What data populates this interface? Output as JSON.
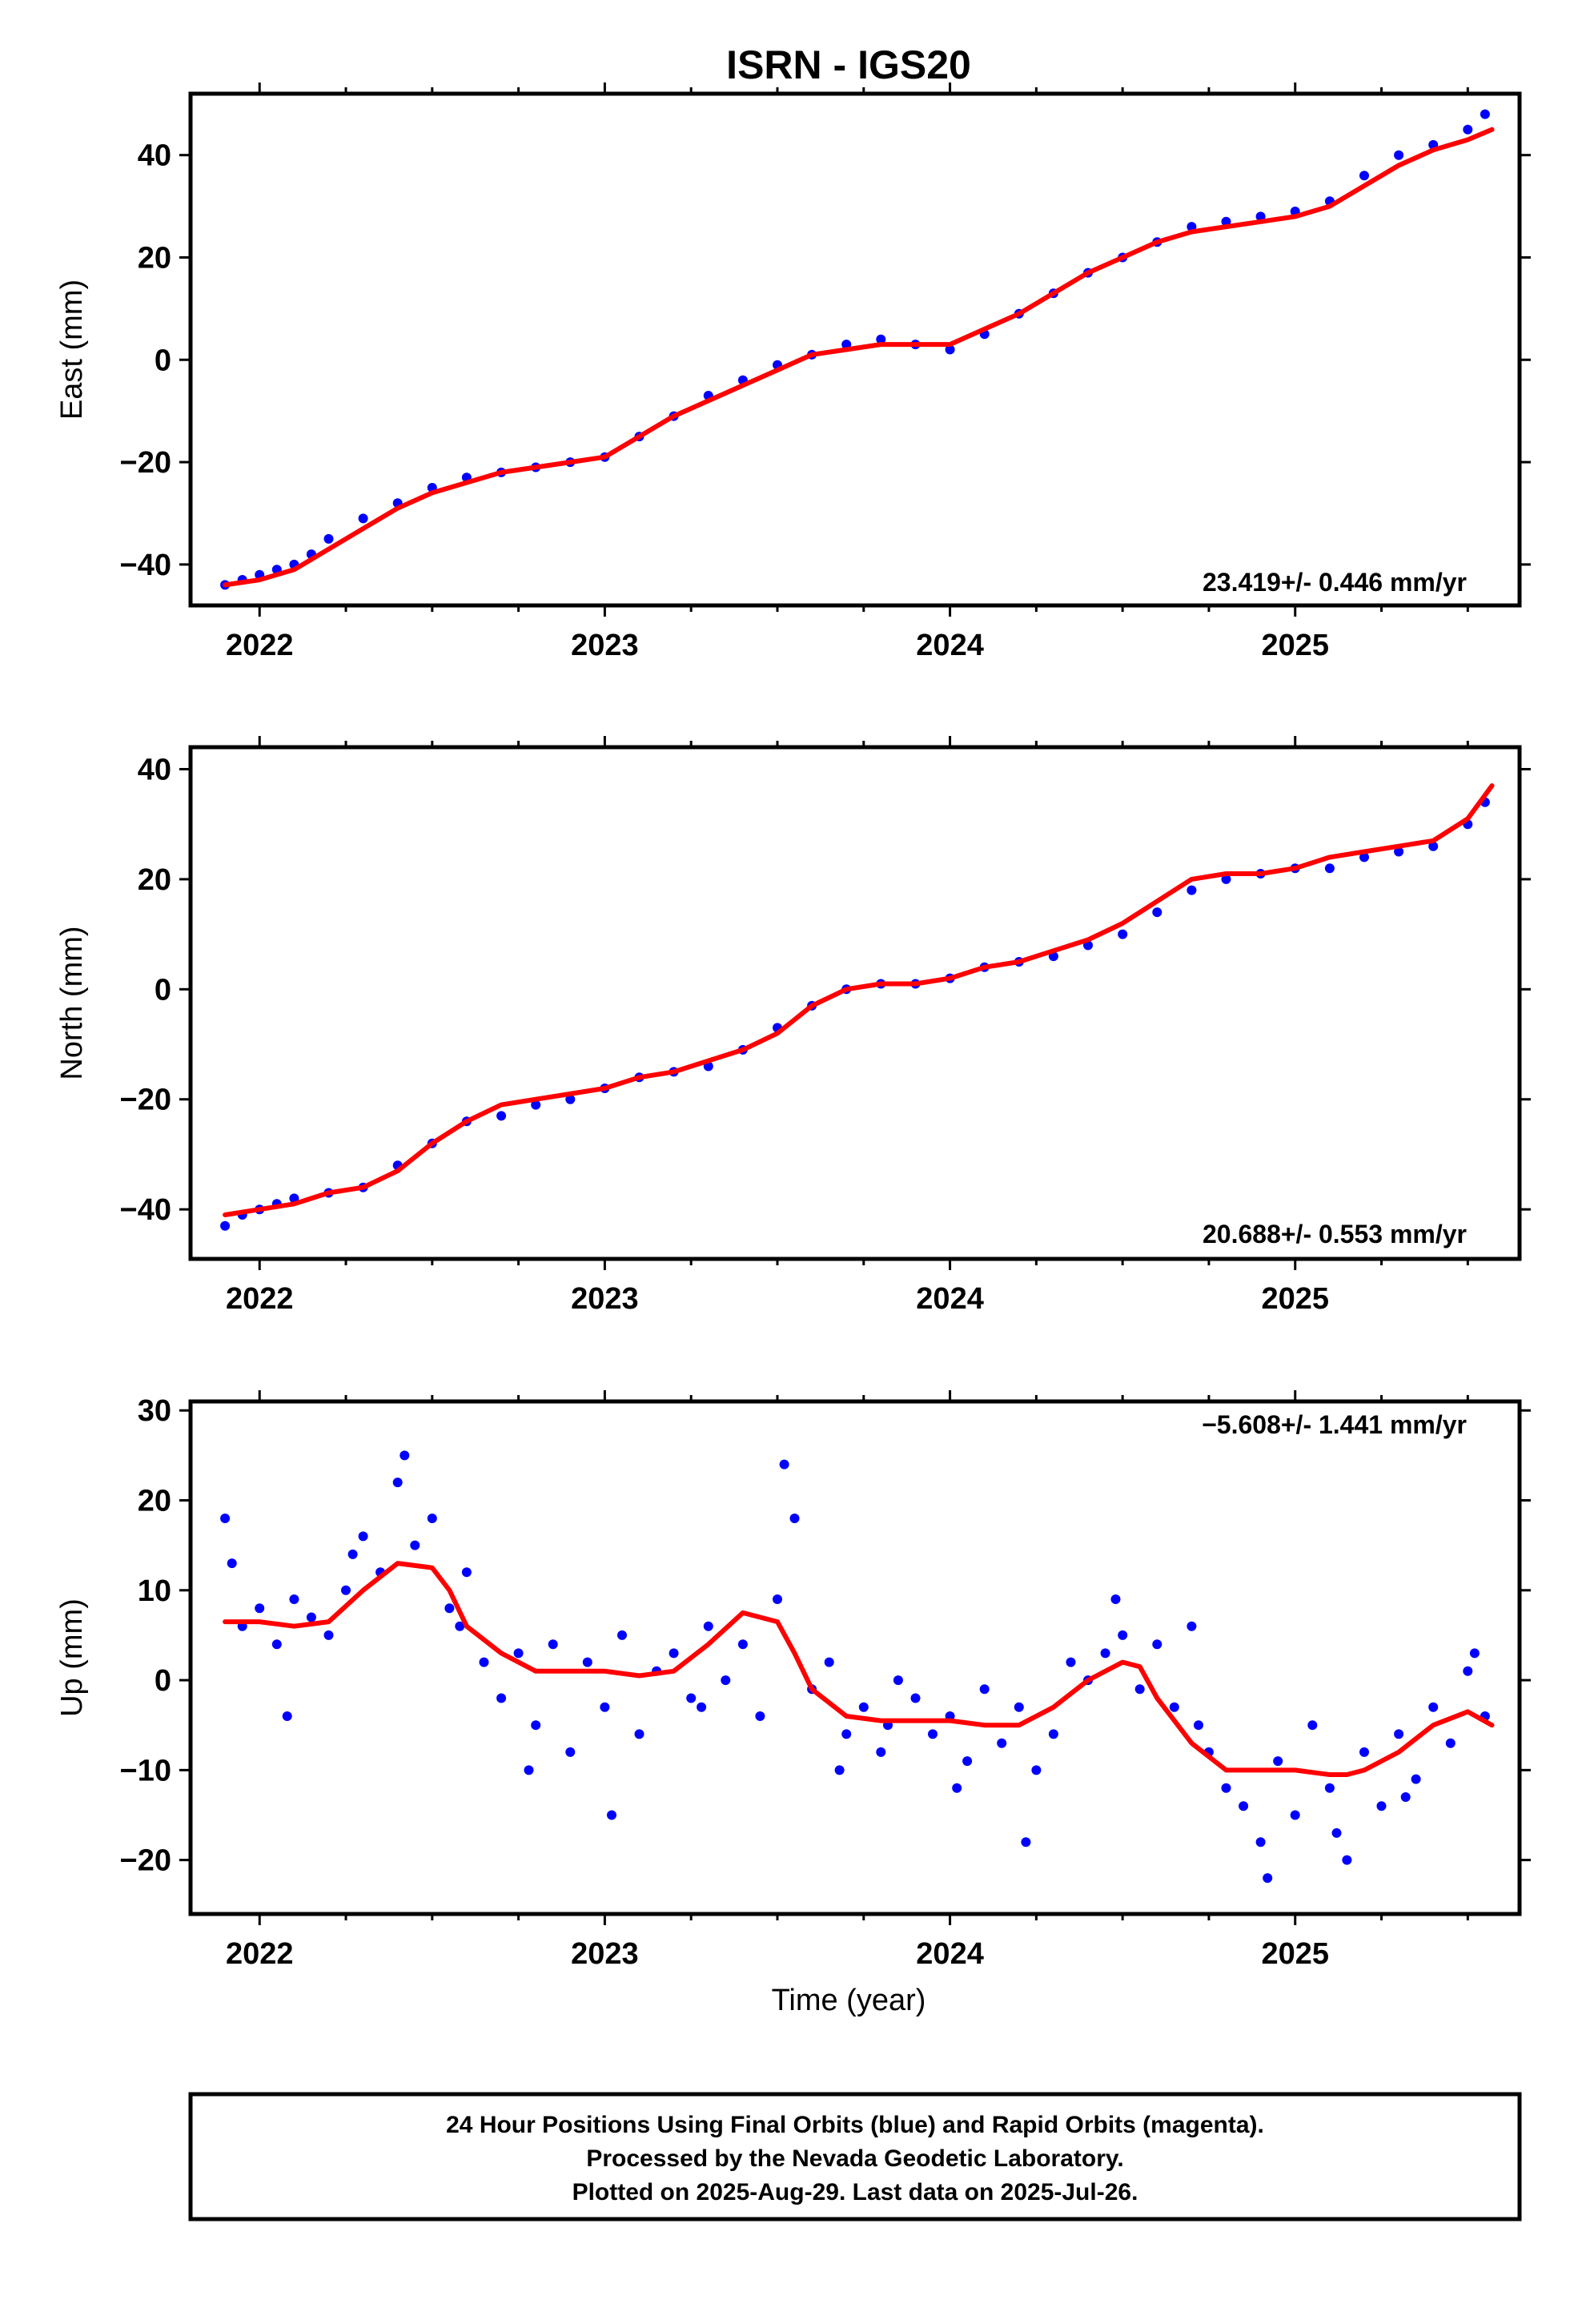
{
  "chart_data": {
    "title": "ISRN - IGS20",
    "type": "scatter",
    "xlabel": "Time (year)",
    "x_tick_labels": [
      "2022",
      "2023",
      "2024",
      "2025"
    ],
    "xlim": [
      2021.8,
      2025.65
    ],
    "colors": {
      "points": "#0000ff",
      "fit": "#ff0000"
    },
    "panels": [
      {
        "ylabel": "East (mm)",
        "ylim": [
          -48,
          52
        ],
        "yticks": [
          -40,
          -20,
          0,
          20,
          40
        ],
        "rate": "23.419+/- 0.446 mm/yr",
        "series": [
          {
            "type": "scatter",
            "x": [
              2021.9,
              2021.95,
              2022.0,
              2022.05,
              2022.1,
              2022.15,
              2022.2,
              2022.3,
              2022.4,
              2022.5,
              2022.6,
              2022.7,
              2022.8,
              2022.9,
              2023.0,
              2023.1,
              2023.2,
              2023.3,
              2023.4,
              2023.5,
              2023.6,
              2023.7,
              2023.8,
              2023.9,
              2024.0,
              2024.1,
              2024.2,
              2024.3,
              2024.4,
              2024.5,
              2024.6,
              2024.7,
              2024.8,
              2024.9,
              2025.0,
              2025.1,
              2025.2,
              2025.3,
              2025.4,
              2025.5,
              2025.55
            ],
            "y": [
              -44,
              -43,
              -42,
              -41,
              -40,
              -38,
              -35,
              -31,
              -28,
              -25,
              -23,
              -22,
              -21,
              -20,
              -19,
              -15,
              -11,
              -7,
              -4,
              -1,
              1,
              3,
              4,
              3,
              2,
              5,
              9,
              13,
              17,
              20,
              23,
              26,
              27,
              28,
              29,
              31,
              36,
              40,
              42,
              45,
              48
            ]
          },
          {
            "type": "line",
            "x": [
              2021.9,
              2022.0,
              2022.1,
              2022.2,
              2022.3,
              2022.4,
              2022.5,
              2022.6,
              2022.7,
              2022.8,
              2022.9,
              2023.0,
              2023.1,
              2023.2,
              2023.3,
              2023.4,
              2023.5,
              2023.6,
              2023.7,
              2023.8,
              2023.9,
              2024.0,
              2024.1,
              2024.2,
              2024.3,
              2024.4,
              2024.5,
              2024.6,
              2024.7,
              2024.8,
              2024.9,
              2025.0,
              2025.1,
              2025.2,
              2025.3,
              2025.4,
              2025.5,
              2025.57
            ],
            "y": [
              -44,
              -43,
              -41,
              -37,
              -33,
              -29,
              -26,
              -24,
              -22,
              -21,
              -20,
              -19,
              -15,
              -11,
              -8,
              -5,
              -2,
              1,
              2,
              3,
              3,
              3,
              6,
              9,
              13,
              17,
              20,
              23,
              25,
              26,
              27,
              28,
              30,
              34,
              38,
              41,
              43,
              45
            ]
          }
        ]
      },
      {
        "ylabel": "North (mm)",
        "ylim": [
          -49,
          44
        ],
        "yticks": [
          -40,
          -20,
          0,
          20,
          40
        ],
        "rate": "20.688+/- 0.553 mm/yr",
        "series": [
          {
            "type": "scatter",
            "x": [
              2021.9,
              2021.95,
              2022.0,
              2022.05,
              2022.1,
              2022.2,
              2022.3,
              2022.4,
              2022.5,
              2022.6,
              2022.7,
              2022.8,
              2022.9,
              2023.0,
              2023.1,
              2023.2,
              2023.3,
              2023.4,
              2023.5,
              2023.6,
              2023.7,
              2023.8,
              2023.9,
              2024.0,
              2024.1,
              2024.2,
              2024.3,
              2024.4,
              2024.5,
              2024.6,
              2024.7,
              2024.8,
              2024.9,
              2025.0,
              2025.1,
              2025.2,
              2025.3,
              2025.4,
              2025.5,
              2025.55
            ],
            "y": [
              -43,
              -41,
              -40,
              -39,
              -38,
              -37,
              -36,
              -32,
              -28,
              -24,
              -23,
              -21,
              -20,
              -18,
              -16,
              -15,
              -14,
              -11,
              -7,
              -3,
              0,
              1,
              1,
              2,
              4,
              5,
              6,
              8,
              10,
              14,
              18,
              20,
              21,
              22,
              22,
              24,
              25,
              26,
              30,
              34
            ]
          },
          {
            "type": "line",
            "x": [
              2021.9,
              2022.0,
              2022.1,
              2022.2,
              2022.3,
              2022.4,
              2022.5,
              2022.6,
              2022.7,
              2022.8,
              2022.9,
              2023.0,
              2023.1,
              2023.2,
              2023.3,
              2023.4,
              2023.5,
              2023.6,
              2023.7,
              2023.8,
              2023.9,
              2024.0,
              2024.1,
              2024.2,
              2024.3,
              2024.4,
              2024.5,
              2024.6,
              2024.7,
              2024.8,
              2024.9,
              2025.0,
              2025.1,
              2025.2,
              2025.3,
              2025.4,
              2025.5,
              2025.57
            ],
            "y": [
              -41,
              -40,
              -39,
              -37,
              -36,
              -33,
              -28,
              -24,
              -21,
              -20,
              -19,
              -18,
              -16,
              -15,
              -13,
              -11,
              -8,
              -3,
              0,
              1,
              1,
              2,
              4,
              5,
              7,
              9,
              12,
              16,
              20,
              21,
              21,
              22,
              24,
              25,
              26,
              27,
              31,
              37
            ]
          }
        ]
      },
      {
        "ylabel": "Up (mm)",
        "ylim": [
          -26,
          31
        ],
        "yticks": [
          -20,
          -10,
          0,
          10,
          20,
          30
        ],
        "rate": "-5.608+/- 1.441 mm/yr",
        "series": [
          {
            "type": "scatter",
            "x": [
              2021.9,
              2021.95,
              2022.0,
              2022.05,
              2022.1,
              2022.15,
              2022.2,
              2022.25,
              2022.3,
              2022.35,
              2022.4,
              2022.45,
              2022.5,
              2022.55,
              2022.6,
              2022.65,
              2022.7,
              2022.75,
              2022.8,
              2022.85,
              2022.9,
              2022.95,
              2023.0,
              2023.05,
              2023.1,
              2023.15,
              2023.2,
              2023.25,
              2023.3,
              2023.35,
              2023.4,
              2023.45,
              2023.5,
              2023.55,
              2023.6,
              2023.65,
              2023.7,
              2023.75,
              2023.8,
              2023.85,
              2023.9,
              2023.95,
              2024.0,
              2024.05,
              2024.1,
              2024.15,
              2024.2,
              2024.25,
              2024.3,
              2024.35,
              2024.4,
              2024.45,
              2024.5,
              2024.55,
              2024.6,
              2024.65,
              2024.7,
              2024.75,
              2024.8,
              2024.85,
              2024.9,
              2024.95,
              2025.0,
              2025.05,
              2025.1,
              2025.15,
              2025.2,
              2025.25,
              2025.3,
              2025.35,
              2025.4,
              2025.45,
              2025.5,
              2025.55,
              2021.92,
              2022.08,
              2022.27,
              2022.42,
              2022.58,
              2022.78,
              2023.02,
              2023.28,
              2023.52,
              2023.68,
              2023.82,
              2024.02,
              2024.22,
              2024.48,
              2024.72,
              2024.92,
              2025.12,
              2025.32,
              2025.52
            ],
            "y": [
              18,
              6,
              8,
              4,
              9,
              7,
              5,
              10,
              16,
              12,
              22,
              15,
              18,
              8,
              12,
              2,
              -2,
              3,
              -5,
              4,
              -8,
              2,
              -3,
              5,
              -6,
              1,
              3,
              -2,
              6,
              0,
              4,
              -4,
              9,
              18,
              -1,
              2,
              -6,
              -3,
              -8,
              0,
              -2,
              -6,
              -4,
              -9,
              -1,
              -7,
              -3,
              -10,
              -6,
              2,
              0,
              3,
              5,
              -1,
              4,
              -3,
              6,
              -8,
              -12,
              -14,
              -18,
              -9,
              -15,
              -5,
              -12,
              -20,
              -8,
              -14,
              -6,
              -11,
              -3,
              -7,
              1,
              -4,
              13,
              -4,
              14,
              25,
              6,
              -10,
              -15,
              -3,
              24,
              -10,
              -5,
              -12,
              -18,
              9,
              -5,
              -22,
              -17,
              -13,
              3
            ]
          },
          {
            "type": "line",
            "x": [
              2021.9,
              2022.0,
              2022.1,
              2022.2,
              2022.3,
              2022.4,
              2022.5,
              2022.55,
              2022.6,
              2022.7,
              2022.8,
              2022.9,
              2023.0,
              2023.1,
              2023.2,
              2023.3,
              2023.4,
              2023.5,
              2023.55,
              2023.6,
              2023.7,
              2023.8,
              2023.9,
              2024.0,
              2024.1,
              2024.2,
              2024.3,
              2024.4,
              2024.5,
              2024.55,
              2024.6,
              2024.7,
              2024.8,
              2024.9,
              2025.0,
              2025.1,
              2025.15,
              2025.2,
              2025.3,
              2025.4,
              2025.5,
              2025.57
            ],
            "y": [
              6.5,
              6.5,
              6,
              6.5,
              10,
              13,
              12.5,
              10,
              6,
              3,
              1,
              1,
              1,
              0.5,
              1,
              4,
              7.5,
              6.5,
              3,
              -1,
              -4,
              -4.5,
              -4.5,
              -4.5,
              -5,
              -5,
              -3,
              0,
              2,
              1.5,
              -2,
              -7,
              -10,
              -10,
              -10,
              -10.5,
              -10.5,
              -10,
              -8,
              -5,
              -3.5,
              -5
            ]
          }
        ]
      }
    ]
  },
  "caption": {
    "line1": "24 Hour Positions Using Final Orbits (blue) and Rapid Orbits (magenta).",
    "line2": "Processed by the Nevada Geodetic Laboratory.",
    "line3": "Plotted on 2025-Aug-29. Last data on 2025-Jul-26."
  }
}
